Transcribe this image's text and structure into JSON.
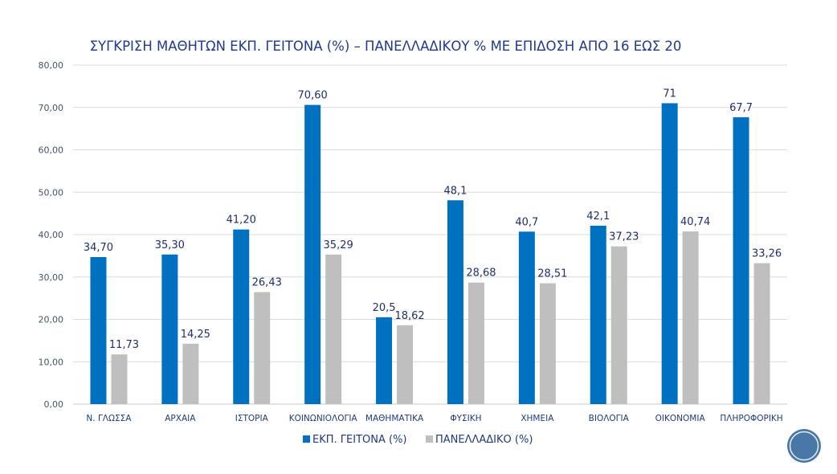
{
  "chart_data": {
    "type": "bar",
    "title": "ΣΥΓΚΡΙΣΗ ΜΑΘΗΤΩΝ ΕΚΠ. ΓΕΙΤΟΝΑ (%) – ΠΑΝΕΛΛΑΔΙΚΟΥ % ΜΕ ΕΠΙΔΟΣΗ ΑΠΟ 16 ΕΩΣ 20",
    "xlabel": "",
    "ylabel": "",
    "ylim": [
      0,
      80
    ],
    "yticks": [
      "0,00",
      "10,00",
      "20,00",
      "30,00",
      "40,00",
      "50,00",
      "60,00",
      "70,00",
      "80,00"
    ],
    "grid": true,
    "legend_position": "bottom",
    "categories": [
      "Ν. ΓΛΩΣΣΑ",
      "ΑΡΧΑΙΑ",
      "ΙΣΤΟΡΙΑ",
      "ΚΟΙΝΩΝΙΟΛΟΓΙΑ",
      "ΜΑΘΗΜΑΤΙΚΑ",
      "ΦΥΣΙΚΗ",
      "ΧΗΜΕΙΑ",
      "ΒΙΟΛΟΓΙΑ",
      "ΟΙΚΟΝΟΜΙΑ",
      "ΠΛΗΡΟΦΟΡΙΚΗ"
    ],
    "series": [
      {
        "name": "ΕΚΠ. ΓΕΙΤΟΝΑ (%)",
        "color": "#0070c0",
        "values": [
          34.7,
          35.3,
          41.2,
          70.6,
          20.5,
          48.1,
          40.7,
          42.1,
          71,
          67.7
        ],
        "labels": [
          "34,70",
          "35,30",
          "41,20",
          "70,60",
          "20,5",
          "48,1",
          "40,7",
          "42,1",
          "71",
          "67,7"
        ]
      },
      {
        "name": "ΠΑΝΕΛΛΑΔΙΚΟ (%)",
        "color": "#bfbfbf",
        "values": [
          11.73,
          14.25,
          26.43,
          35.29,
          18.62,
          28.68,
          28.51,
          37.23,
          40.74,
          33.26
        ],
        "labels": [
          "11,73",
          "14,25",
          "26,43",
          "35,29",
          "18,62",
          "28,68",
          "28,51",
          "37,23",
          "40,74",
          "33,26"
        ]
      }
    ]
  },
  "decoration": {
    "badge_icon": "circle-logo-icon",
    "badge_color": "#4a78a6"
  }
}
